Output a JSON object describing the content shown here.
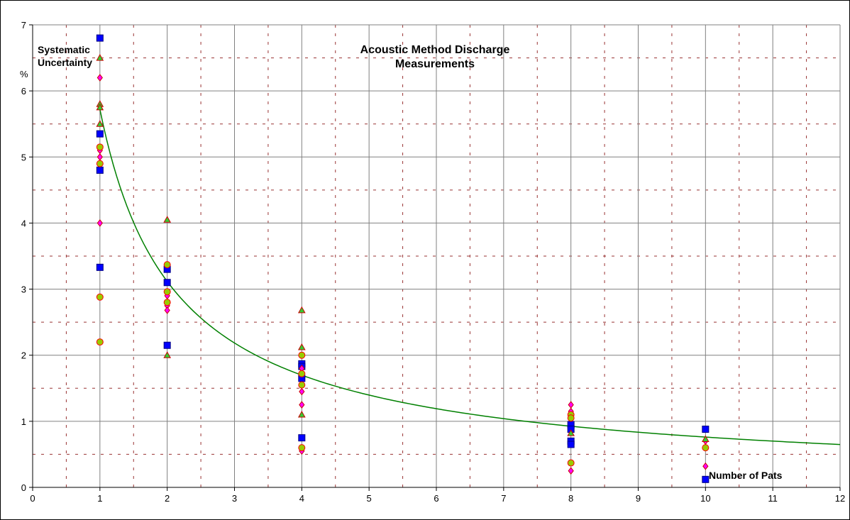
{
  "chart_data": {
    "type": "scatter",
    "title_lines": [
      "Acoustic Method Discharge",
      "Measurements"
    ],
    "ylabel_lines": [
      "Systematic",
      "Uncertainty"
    ],
    "yunit": "%",
    "xlabel": "Number of Pats",
    "xlim": [
      0,
      12
    ],
    "ylim": [
      0,
      7
    ],
    "x_ticks": [
      "0",
      "1",
      "2",
      "3",
      "4",
      "5",
      "6",
      "7",
      "8",
      "9",
      "10",
      "11",
      "12"
    ],
    "y_ticks": [
      "0",
      "1",
      "2",
      "3",
      "4",
      "5",
      "6",
      "7"
    ],
    "grid": "major solid gray, minor dashed dark red",
    "legend": "none",
    "series": [
      {
        "marker": "square",
        "fill": "#0000ff",
        "stroke": "#000080",
        "points": [
          [
            1,
            6.8
          ],
          [
            1,
            5.35
          ],
          [
            1,
            4.8
          ],
          [
            1,
            3.33
          ],
          [
            2,
            3.3
          ],
          [
            2,
            3.1
          ],
          [
            2,
            2.15
          ],
          [
            4,
            1.87
          ],
          [
            4,
            1.83
          ],
          [
            4,
            1.65
          ],
          [
            4,
            0.75
          ],
          [
            8,
            0.95
          ],
          [
            8,
            0.88
          ],
          [
            8,
            0.7
          ],
          [
            8,
            0.65
          ],
          [
            10,
            0.88
          ],
          [
            10,
            0.12
          ]
        ]
      },
      {
        "marker": "diamond",
        "fill": "#ff00ff",
        "stroke": "#cc0000",
        "points": [
          [
            1,
            6.2
          ],
          [
            1,
            5.1
          ],
          [
            1,
            5.0
          ],
          [
            1,
            4.0
          ],
          [
            2,
            2.9
          ],
          [
            2,
            2.75
          ],
          [
            2,
            2.68
          ],
          [
            4,
            1.8
          ],
          [
            4,
            1.45
          ],
          [
            4,
            1.25
          ],
          [
            4,
            0.55
          ],
          [
            8,
            1.25
          ],
          [
            8,
            1.15
          ],
          [
            8,
            0.25
          ],
          [
            10,
            0.7
          ],
          [
            10,
            0.32
          ]
        ]
      },
      {
        "marker": "circle",
        "fill": "#99cc00",
        "stroke": "#ff0000",
        "points": [
          [
            1,
            5.15
          ],
          [
            1,
            4.9
          ],
          [
            1,
            2.88
          ],
          [
            1,
            2.2
          ],
          [
            2,
            3.37
          ],
          [
            2,
            2.96
          ],
          [
            2,
            2.8
          ],
          [
            4,
            2.0
          ],
          [
            4,
            1.72
          ],
          [
            4,
            1.55
          ],
          [
            4,
            0.6
          ],
          [
            8,
            1.1
          ],
          [
            8,
            1.05
          ],
          [
            8,
            0.37
          ],
          [
            10,
            0.6
          ]
        ]
      },
      {
        "marker": "triangle",
        "fill": "#33cc33",
        "stroke": "#cc0000",
        "points": [
          [
            1,
            6.5
          ],
          [
            1,
            5.8
          ],
          [
            1,
            5.75
          ],
          [
            1,
            5.5
          ],
          [
            2,
            4.05
          ],
          [
            2,
            2.0
          ],
          [
            4,
            2.68
          ],
          [
            4,
            2.12
          ],
          [
            4,
            1.1
          ],
          [
            8,
            0.82
          ],
          [
            10,
            0.73
          ]
        ]
      }
    ],
    "trend": {
      "color": "#008000",
      "formula": "y = 5.72 * x^-0.876",
      "a": 5.72,
      "b": -0.876,
      "x_from": 1,
      "x_to": 12
    }
  }
}
